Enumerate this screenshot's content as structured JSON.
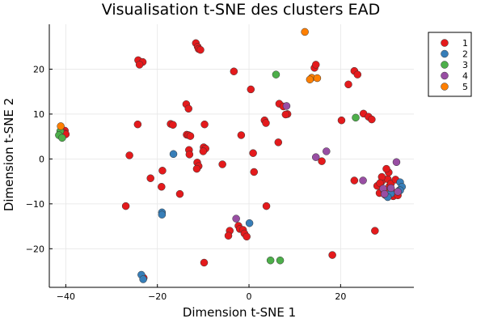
{
  "chart_data": {
    "type": "scatter",
    "title": "Visualisation t-SNE des clusters EAD",
    "xlabel": "Dimension t-SNE 1",
    "ylabel": "Dimension t-SNE 2",
    "xlim": [
      -43.6,
      36
    ],
    "ylim": [
      -28.6,
      30
    ],
    "xticks": [
      -40,
      -20,
      0,
      20
    ],
    "yticks": [
      -20,
      -10,
      0,
      10,
      20
    ],
    "xtick_labels": [
      "−40",
      "−20",
      "0",
      "20"
    ],
    "ytick_labels": [
      "−20",
      "−10",
      "0",
      "10",
      "20"
    ],
    "grid": true,
    "legend_position": "top-right",
    "series": [
      {
        "name": "1",
        "color": "#e41a1c",
        "points": [
          [
            -11.6,
            25.8
          ],
          [
            -11.2,
            25.0
          ],
          [
            -11.0,
            24.5
          ],
          [
            -10.6,
            24.3
          ],
          [
            -24.2,
            22.0
          ],
          [
            -23.2,
            21.6
          ],
          [
            -23.9,
            21.0
          ],
          [
            -3.3,
            19.5
          ],
          [
            14.3,
            20.3
          ],
          [
            14.6,
            21.0
          ],
          [
            23.0,
            19.6
          ],
          [
            23.7,
            18.8
          ],
          [
            21.7,
            16.6
          ],
          [
            0.4,
            15.5
          ],
          [
            -13.7,
            12.2
          ],
          [
            -13.2,
            11.2
          ],
          [
            6.6,
            12.3
          ],
          [
            7.5,
            11.7
          ],
          [
            8.4,
            10.0
          ],
          [
            8.0,
            9.9
          ],
          [
            25.0,
            10.1
          ],
          [
            26.1,
            9.4
          ],
          [
            26.8,
            8.8
          ],
          [
            20.2,
            8.6
          ],
          [
            3.4,
            8.6
          ],
          [
            3.7,
            8.0
          ],
          [
            -17.1,
            7.8
          ],
          [
            -16.6,
            7.6
          ],
          [
            -9.7,
            7.7
          ],
          [
            -24.3,
            7.7
          ],
          [
            -40.2,
            6.3
          ],
          [
            -40.5,
            5.8
          ],
          [
            -40.0,
            5.5
          ],
          [
            -13.6,
            5.4
          ],
          [
            -13.2,
            5.3
          ],
          [
            -12.8,
            5.1
          ],
          [
            -1.7,
            5.3
          ],
          [
            6.4,
            3.7
          ],
          [
            -9.9,
            2.6
          ],
          [
            -9.5,
            2.3
          ],
          [
            -10.0,
            1.7
          ],
          [
            -13.1,
            2.0
          ],
          [
            -13.0,
            1.0
          ],
          [
            0.9,
            1.3
          ],
          [
            -26.1,
            0.8
          ],
          [
            15.9,
            -0.5
          ],
          [
            -11.3,
            -0.8
          ],
          [
            -11.0,
            -1.6
          ],
          [
            -11.4,
            -2.2
          ],
          [
            -5.8,
            -1.2
          ],
          [
            -18.9,
            -2.6
          ],
          [
            1.1,
            -2.9
          ],
          [
            -21.5,
            -4.3
          ],
          [
            23.0,
            -4.8
          ],
          [
            -19.1,
            -6.2
          ],
          [
            -15.1,
            -7.8
          ],
          [
            -26.9,
            -10.5
          ],
          [
            3.8,
            -10.5
          ],
          [
            -2.3,
            -14.9
          ],
          [
            -2.0,
            -15.6
          ],
          [
            -1.3,
            -15.8
          ],
          [
            -1.0,
            -16.6
          ],
          [
            -4.2,
            -16.0
          ],
          [
            -4.5,
            -17.1
          ],
          [
            -0.5,
            -17.3
          ],
          [
            27.5,
            -16.0
          ],
          [
            18.2,
            -21.4
          ],
          [
            -9.8,
            -23.1
          ],
          [
            -23.0,
            -26.5
          ],
          [
            28.0,
            -6.0
          ],
          [
            28.5,
            -7.6
          ],
          [
            29.0,
            -5.0
          ],
          [
            29.5,
            -7.0
          ],
          [
            30.3,
            -4.5
          ],
          [
            30.7,
            -6.0
          ],
          [
            31.5,
            -8.3
          ],
          [
            29.0,
            -4.0
          ],
          [
            30.5,
            -3.0
          ],
          [
            31.0,
            -5.5
          ],
          [
            32.0,
            -4.6
          ],
          [
            28.6,
            -5.4
          ],
          [
            30.0,
            -2.2
          ],
          [
            32.5,
            -8.1
          ],
          [
            29.7,
            -8.0
          ],
          [
            31.2,
            -7.2
          ]
        ]
      },
      {
        "name": "2",
        "color": "#377eb8",
        "points": [
          [
            -16.5,
            1.1
          ],
          [
            -19.0,
            -11.9
          ],
          [
            -19.0,
            -12.4
          ],
          [
            0.1,
            -14.3
          ],
          [
            -23.5,
            -25.8
          ],
          [
            -23.1,
            -26.8
          ],
          [
            33.0,
            -5.2
          ],
          [
            33.4,
            -6.2
          ],
          [
            32.8,
            -7.0
          ],
          [
            31.0,
            -7.7
          ],
          [
            30.3,
            -8.5
          ],
          [
            33.0,
            -7.0
          ]
        ]
      },
      {
        "name": "3",
        "color": "#4daf4a",
        "points": [
          [
            -41.2,
            6.2
          ],
          [
            -41.5,
            5.3
          ],
          [
            -40.8,
            4.7
          ],
          [
            5.9,
            18.8
          ],
          [
            23.3,
            9.2
          ],
          [
            4.7,
            -22.6
          ],
          [
            6.8,
            -22.6
          ]
        ]
      },
      {
        "name": "4",
        "color": "#984ea3",
        "points": [
          [
            8.2,
            11.8
          ],
          [
            14.6,
            0.4
          ],
          [
            16.9,
            1.7
          ],
          [
            24.9,
            -4.8
          ],
          [
            -2.8,
            -13.3
          ],
          [
            32.2,
            -0.7
          ],
          [
            29.3,
            -6.6
          ],
          [
            29.6,
            -7.8
          ],
          [
            31.0,
            -6.5
          ],
          [
            32.5,
            -7.3
          ]
        ]
      },
      {
        "name": "5",
        "color": "#ff7f00",
        "points": [
          [
            12.2,
            28.3
          ],
          [
            13.7,
            18.1
          ],
          [
            13.3,
            17.7
          ],
          [
            14.9,
            18.0
          ],
          [
            -41.1,
            7.3
          ]
        ]
      }
    ]
  }
}
